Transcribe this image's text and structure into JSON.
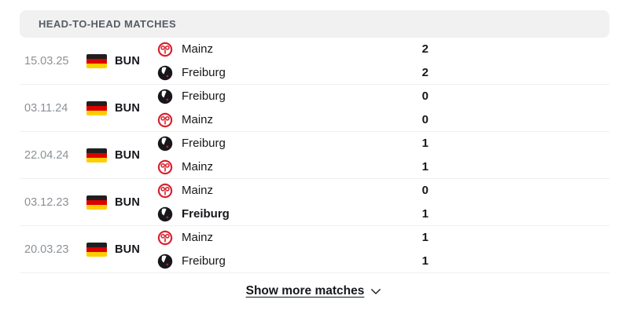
{
  "header": {
    "title": "HEAD-TO-HEAD MATCHES"
  },
  "matches": [
    {
      "date": "15.03.25",
      "league": "BUN",
      "flag": "germany",
      "teams": [
        {
          "name": "Mainz",
          "logo": "mainz-logo",
          "score": "2",
          "winner": false
        },
        {
          "name": "Freiburg",
          "logo": "freiburg-logo",
          "score": "2",
          "winner": false
        }
      ]
    },
    {
      "date": "03.11.24",
      "league": "BUN",
      "flag": "germany",
      "teams": [
        {
          "name": "Freiburg",
          "logo": "freiburg-logo",
          "score": "0",
          "winner": false
        },
        {
          "name": "Mainz",
          "logo": "mainz-logo",
          "score": "0",
          "winner": false
        }
      ]
    },
    {
      "date": "22.04.24",
      "league": "BUN",
      "flag": "germany",
      "teams": [
        {
          "name": "Freiburg",
          "logo": "freiburg-logo",
          "score": "1",
          "winner": false
        },
        {
          "name": "Mainz",
          "logo": "mainz-logo",
          "score": "1",
          "winner": false
        }
      ]
    },
    {
      "date": "03.12.23",
      "league": "BUN",
      "flag": "germany",
      "teams": [
        {
          "name": "Mainz",
          "logo": "mainz-logo",
          "score": "0",
          "winner": false
        },
        {
          "name": "Freiburg",
          "logo": "freiburg-logo",
          "score": "1",
          "winner": true
        }
      ]
    },
    {
      "date": "20.03.23",
      "league": "BUN",
      "flag": "germany",
      "teams": [
        {
          "name": "Mainz",
          "logo": "mainz-logo",
          "score": "1",
          "winner": false
        },
        {
          "name": "Freiburg",
          "logo": "freiburg-logo",
          "score": "1",
          "winner": false
        }
      ]
    }
  ],
  "footer": {
    "show_more_label": "Show more matches"
  },
  "colors": {
    "header_bg": "#f1f1f2",
    "header_text": "#565c63",
    "date_text": "#8c9196",
    "primary_text": "#15171b",
    "row_border": "#eef0f2",
    "mainz_red": "#d8222e",
    "flag_black": "#1f1f1f",
    "flag_red": "#dd0000",
    "flag_gold": "#ffce00"
  }
}
